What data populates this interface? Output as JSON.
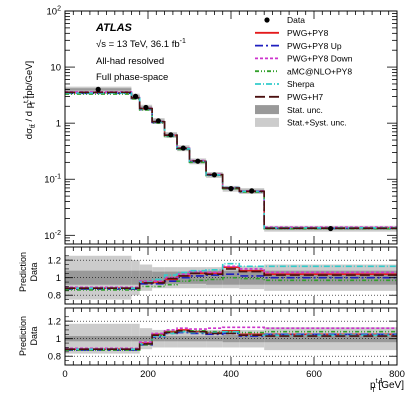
{
  "chart_data": {
    "type": "line",
    "experiment": "ATLAS",
    "energy_line": "√s = 13 TeV, 36.1 fb",
    "energy_sup": "-1",
    "channel": "All-had resolved",
    "phase_space": "Full phase-space",
    "x_axis": {
      "label_main": "p",
      "label_sup": "t,1",
      "label_sub": "T",
      "label_unit": " [GeV]",
      "range": [
        0,
        800
      ],
      "ticks": [
        "0",
        "200",
        "400",
        "600",
        "800"
      ],
      "tick_values": [
        0,
        200,
        400,
        600,
        800
      ]
    },
    "y_axis": {
      "label": "dσ_tt̄ / d p_T^{t,1} [pb/GeV]",
      "label_main": "dσ",
      "label_sub_tt": "tt̄",
      "label_mid": " / d p",
      "label_sup": "t,1",
      "label_sub_T": "T",
      "label_unit": " [pb/GeV]",
      "scale": "log",
      "range": [
        0.007,
        100
      ],
      "ticks": [
        "10",
        "1",
        "10",
        "10"
      ],
      "tick_values": [
        10,
        1,
        0.1,
        0.01
      ],
      "tick_exp": [
        "2",
        "",
        "-1",
        "-2"
      ],
      "tick_bases": [
        "10",
        "1",
        "10",
        "10"
      ],
      "decade_values": [
        100,
        10,
        1,
        0.1,
        0.01
      ],
      "decade_labels": [
        "10",
        "10",
        "1",
        "10",
        "10"
      ],
      "decade_exps": [
        "2",
        "",
        "",
        "-1",
        "-2"
      ]
    },
    "bin_edges": [
      0,
      160,
      180,
      210,
      240,
      270,
      300,
      340,
      380,
      420,
      480,
      800
    ],
    "data": {
      "name": "Data",
      "x": [
        80,
        170,
        195,
        225,
        255,
        285,
        320,
        360,
        400,
        450,
        640
      ],
      "y": [
        4.0,
        3.0,
        1.9,
        1.1,
        0.62,
        0.36,
        0.21,
        0.12,
        0.068,
        0.062,
        0.0132
      ]
    },
    "bands": {
      "stat_name": "Stat. unc.",
      "syst_name": "Stat.+Syst. unc.",
      "stat_color": "#999999",
      "syst_color": "#cccccc",
      "main_rel": [
        0.12,
        0.12,
        0.12,
        0.12,
        0.12,
        0.12,
        0.12,
        0.12,
        0.12,
        0.12,
        0.12
      ]
    },
    "series": [
      {
        "name": "PWG+PY8",
        "color": "#e41a1c",
        "dash": "",
        "width": 1.6,
        "y": [
          3.5,
          2.8,
          1.8,
          1.05,
          0.6,
          0.35,
          0.21,
          0.12,
          0.07,
          0.06,
          0.0135
        ]
      },
      {
        "name": "PWG+PY8 Up",
        "color": "#1f1fbf",
        "dash": "8,3,2,3",
        "width": 1.6,
        "y": [
          3.4,
          2.75,
          1.75,
          1.03,
          0.59,
          0.345,
          0.205,
          0.118,
          0.069,
          0.06,
          0.0133
        ]
      },
      {
        "name": "PWG+PY8 Down",
        "color": "#cc33cc",
        "dash": "3,2",
        "width": 1.6,
        "y": [
          3.6,
          2.85,
          1.85,
          1.07,
          0.61,
          0.36,
          0.215,
          0.123,
          0.072,
          0.062,
          0.014
        ]
      },
      {
        "name": "aMC@NLO+PY8",
        "color": "#33a02c",
        "dash": "4,2,1,2,1,2",
        "width": 1.6,
        "y": [
          3.3,
          2.7,
          1.72,
          1.01,
          0.58,
          0.34,
          0.2,
          0.116,
          0.068,
          0.059,
          0.0131
        ]
      },
      {
        "name": "Sherpa",
        "color": "#33cccc",
        "dash": "6,2,1,2",
        "width": 1.6,
        "y": [
          3.45,
          2.78,
          1.78,
          1.04,
          0.6,
          0.35,
          0.21,
          0.12,
          0.071,
          0.061,
          0.0136
        ]
      },
      {
        "name": "PWG+H7",
        "color": "#4b1010",
        "dash": "10,4",
        "width": 1.6,
        "y": [
          3.55,
          2.82,
          1.82,
          1.06,
          0.61,
          0.355,
          0.212,
          0.121,
          0.07,
          0.061,
          0.0134
        ]
      }
    ],
    "ratio_axis": {
      "label_top": "Prediction",
      "label_bottom": "Data",
      "range": [
        0.7,
        1.35
      ],
      "ticks": [
        "0.8",
        "1",
        "1.2"
      ],
      "tick_values": [
        0.8,
        1.0,
        1.2
      ]
    },
    "ratio1": {
      "stat": [
        0.08,
        0.08,
        0.08,
        0.07,
        0.07,
        0.07,
        0.07,
        0.08,
        0.08,
        0.08,
        0.08
      ],
      "syst": [
        0.25,
        0.2,
        0.15,
        0.12,
        0.12,
        0.12,
        0.12,
        0.12,
        0.12,
        0.13,
        0.15
      ],
      "series": [
        {
          "name": "PWG+PY8",
          "y": [
            0.88,
            0.88,
            0.95,
            0.95,
            0.98,
            1.02,
            1.05,
            1.05,
            1.12,
            1.08,
            1.04
          ]
        },
        {
          "name": "PWG+PY8 Up",
          "y": [
            0.87,
            0.87,
            0.93,
            0.93,
            0.96,
            1.0,
            1.02,
            1.03,
            1.04,
            1.02,
            1.0
          ]
        },
        {
          "name": "PWG+PY8 Down",
          "y": [
            0.89,
            0.89,
            0.96,
            0.96,
            1.0,
            1.04,
            1.07,
            1.06,
            1.13,
            1.1,
            1.06
          ]
        },
        {
          "name": "aMC@NLO+PY8",
          "y": [
            0.86,
            0.86,
            0.9,
            0.9,
            0.92,
            0.96,
            0.97,
            0.98,
            1.0,
            0.99,
            0.97
          ]
        },
        {
          "name": "Sherpa",
          "y": [
            0.88,
            0.88,
            0.95,
            0.98,
            1.03,
            1.06,
            1.08,
            1.09,
            1.16,
            1.13,
            1.13
          ]
        },
        {
          "name": "PWG+H7",
          "y": [
            0.88,
            0.88,
            0.94,
            0.94,
            0.99,
            1.02,
            1.05,
            1.04,
            1.1,
            1.07,
            1.03
          ]
        }
      ]
    },
    "ratio2": {
      "stat": [
        0.03,
        0.03,
        0.03,
        0.03,
        0.03,
        0.03,
        0.03,
        0.03,
        0.04,
        0.04,
        0.04
      ],
      "syst": [
        0.17,
        0.17,
        0.12,
        0.1,
        0.1,
        0.1,
        0.1,
        0.1,
        0.1,
        0.1,
        0.13
      ],
      "series": [
        {
          "name": "PWG+PY8",
          "y": [
            0.88,
            0.88,
            0.95,
            1.05,
            1.08,
            1.1,
            1.08,
            1.07,
            1.09,
            1.05,
            1.05
          ]
        },
        {
          "name": "PWG+PY8 Up",
          "y": [
            0.87,
            0.87,
            0.93,
            1.02,
            1.06,
            1.07,
            1.06,
            1.05,
            1.06,
            1.03,
            1.05
          ]
        },
        {
          "name": "PWG+PY8 Down",
          "y": [
            0.89,
            0.89,
            0.96,
            1.06,
            1.1,
            1.12,
            1.11,
            1.12,
            1.13,
            1.13,
            1.12
          ]
        },
        {
          "name": "aMC@NLO+PY8",
          "y": [
            0.87,
            0.87,
            0.93,
            1.04,
            1.08,
            1.09,
            1.09,
            1.08,
            1.08,
            1.07,
            1.08
          ]
        },
        {
          "name": "Sherpa",
          "y": [
            0.88,
            0.88,
            0.94,
            1.03,
            1.06,
            1.08,
            1.07,
            1.07,
            1.08,
            1.04,
            1.04
          ]
        },
        {
          "name": "PWG+H7",
          "y": [
            0.88,
            0.88,
            0.94,
            1.04,
            1.07,
            1.09,
            1.08,
            1.06,
            1.06,
            1.04,
            1.03
          ]
        }
      ]
    },
    "legend": {
      "placement": "top-right",
      "entries": [
        "Data",
        "PWG+PY8",
        "PWG+PY8 Up",
        "PWG+PY8 Down",
        "aMC@NLO+PY8",
        "Sherpa",
        "PWG+H7",
        "Stat. unc.",
        "Stat.+Syst. unc."
      ]
    },
    "grid": false
  }
}
